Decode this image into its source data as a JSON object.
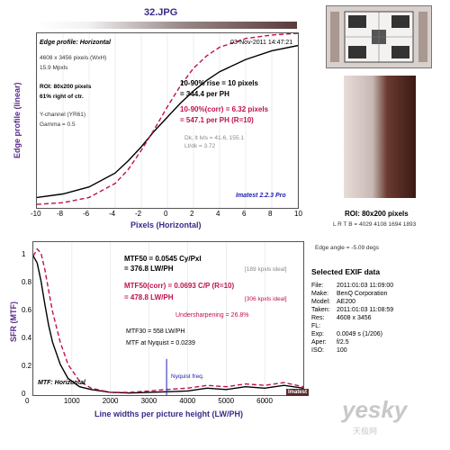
{
  "header": {
    "title": "32.JPG"
  },
  "top_panel": {
    "heading": "Edge profile: Horizontal",
    "timestamp": "03-Nov-2011 14:47:21",
    "info_lines": [
      "4608 x 3456 pixels (WxH)",
      "15.9 Mpxls"
    ],
    "roi_lines": [
      "ROI: 80x200 pixels",
      "61% right of ctr."
    ],
    "channel_lines": [
      "Y-channel  (YR61)",
      "Gamma = 0.5"
    ],
    "rise_lines": [
      "10-90% rise = 10 pixels",
      "= 344.4 per PH"
    ],
    "corr_lines": [
      "10-90%(corr) = 6.32 pixels",
      "= 547.1 per PH  (R=10)"
    ],
    "levels_lines": [
      "Dk, lt lvls = 41.6, 155.1",
      "Lt/dk = 3.72"
    ],
    "version": "Imatest 2.2.3 Pro",
    "ylabel": "Edge profile (linear)",
    "xlabel": "Pixels (Horizontal)"
  },
  "bottom_panel": {
    "mtf50": [
      "MTF50 = 0.0545 Cy/Pxl",
      "= 376.8 LW/PH"
    ],
    "mtf50_ideal": "[189 kpxls ideal]",
    "mtf50corr": [
      "MTF50(corr) = 0.0693 C/P  (R=10)",
      "= 478.8 LW/PH"
    ],
    "mtf50corr_ideal": "[306 kpxls ideal]",
    "undersharpening": "Undersharpening = 26.8%",
    "mtf30": "MTF30 = 558 LW/PH",
    "mtf_nyquist": "MTF at Nyquist = 0.0239",
    "nyquist": "Nyquist freq.",
    "heading": "MTF: Horizontal",
    "logo": "Imatest",
    "ylabel": "SFR (MTF)",
    "xlabel": "Line widths per picture height (LW/PH)"
  },
  "right_panel": {
    "roi_title": "ROI: 80x200 pixels",
    "lrtb": "L R T B = 4029 4108  1694 1893",
    "edge_angle": "Edge angle = -5.09 degs",
    "exif_title": "Selected EXIF data",
    "exif": [
      [
        "File:",
        "2011:01:03 11:09:00"
      ],
      [
        "Make:",
        "BenQ Corporation"
      ],
      [
        "Model:",
        "AE200"
      ],
      [
        "Taken:",
        "2011:01:03 11:08:59"
      ],
      [
        "Res:",
        "4608 x 3456"
      ],
      [
        "FL:",
        ""
      ],
      [
        "Exp:",
        "0.0049 s  (1/206)"
      ],
      [
        "Aper:",
        "f/2.5"
      ],
      [
        "ISO:",
        "100"
      ]
    ],
    "watermark": "yesky",
    "watermark_sub": "天极网"
  },
  "chart_data": [
    {
      "type": "line",
      "title": "Edge profile: Horizontal",
      "xlabel": "Pixels (Horizontal)",
      "ylabel": "Edge profile (linear)",
      "xlim": [
        -10,
        10
      ],
      "ylim": [
        0,
        1
      ],
      "xticks": [
        -10,
        -8,
        -6,
        -4,
        -2,
        0,
        2,
        4,
        6,
        8,
        10
      ],
      "series": [
        {
          "color": "#000000",
          "style": "solid",
          "x": [
            -10,
            -8,
            -6,
            -4,
            -3,
            -2,
            -1,
            0,
            1,
            2,
            3,
            4,
            6,
            8,
            10
          ],
          "y": [
            0.06,
            0.08,
            0.12,
            0.2,
            0.27,
            0.35,
            0.44,
            0.52,
            0.6,
            0.67,
            0.73,
            0.78,
            0.85,
            0.9,
            0.93
          ]
        },
        {
          "color": "#c0104a",
          "style": "dashed",
          "x": [
            -10,
            -8,
            -6,
            -4,
            -3,
            -2,
            -1,
            0,
            1,
            2,
            3,
            4,
            6,
            8,
            10
          ],
          "y": [
            0.02,
            0.03,
            0.06,
            0.14,
            0.22,
            0.33,
            0.45,
            0.58,
            0.7,
            0.8,
            0.87,
            0.92,
            0.97,
            0.99,
            1.0
          ]
        }
      ]
    },
    {
      "type": "line",
      "title": "MTF: Horizontal",
      "xlabel": "Line widths per picture height (LW/PH)",
      "ylabel": "SFR (MTF)",
      "xlim": [
        0,
        7000
      ],
      "ylim": [
        0,
        1.1
      ],
      "xticks": [
        0,
        1000,
        2000,
        3000,
        4000,
        5000,
        6000
      ],
      "yticks": [
        0,
        0.2,
        0.4,
        0.6,
        0.8,
        1
      ],
      "nyquist_x": 3456,
      "series": [
        {
          "color": "#000000",
          "style": "solid",
          "x": [
            0,
            100,
            200,
            300,
            400,
            500,
            700,
            900,
            1200,
            1500,
            2000,
            2500,
            3000,
            3456,
            4000,
            4500,
            5000,
            5500,
            6000,
            6500,
            7000
          ],
          "y": [
            1.0,
            0.95,
            0.82,
            0.65,
            0.5,
            0.38,
            0.22,
            0.12,
            0.06,
            0.04,
            0.02,
            0.015,
            0.02,
            0.024,
            0.03,
            0.05,
            0.04,
            0.06,
            0.05,
            0.07,
            0.05
          ]
        },
        {
          "color": "#c0104a",
          "style": "dashed",
          "x": [
            0,
            100,
            200,
            300,
            400,
            500,
            700,
            900,
            1200,
            1500,
            2000,
            2500,
            3000,
            3456,
            4000,
            4500,
            5000,
            5500,
            6000,
            6500,
            7000
          ],
          "y": [
            1.0,
            1.05,
            1.02,
            0.9,
            0.75,
            0.6,
            0.38,
            0.22,
            0.1,
            0.05,
            0.02,
            0.02,
            0.03,
            0.04,
            0.05,
            0.07,
            0.06,
            0.08,
            0.07,
            0.09,
            0.06
          ]
        }
      ]
    }
  ]
}
